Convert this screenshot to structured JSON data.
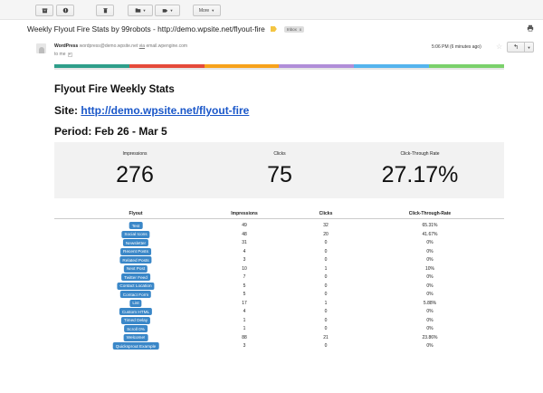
{
  "toolbar": {
    "archive_icon": "archive-icon",
    "spam_icon": "report-spam-icon",
    "delete_icon": "trash-icon",
    "folder_icon": "move-to-folder-icon",
    "label_icon": "labels-icon",
    "more_label": "More"
  },
  "message": {
    "subject": "Weekly Flyout Fire Stats by 99robots - http://demo.wpsite.net/flyout-fire",
    "inbox_chip": "Inbox",
    "inbox_chip_close": "x",
    "sender_name": "WordPress",
    "sender_email": "wordpress@demo.wpsite.net",
    "via_label": "via",
    "via_domain": "email.wpengine.com",
    "to_label": "to me",
    "date": "5:06 PM (6 minutes ago)"
  },
  "color_bar": [
    "#2e9e8a",
    "#e54a3a",
    "#f7a21b",
    "#b08ed8",
    "#55b4ee",
    "#7bd16b"
  ],
  "email": {
    "title": "Flyout Fire Weekly Stats",
    "site_label": "Site:",
    "site_url": "http://demo.wpsite.net/flyout-fire",
    "period": "Period: Feb 26 - Mar 5"
  },
  "summary": {
    "impressions_label": "Impressions",
    "impressions_value": "276",
    "clicks_label": "Clicks",
    "clicks_value": "75",
    "ctr_label": "Click-Through Rate",
    "ctr_value": "27.17%"
  },
  "table": {
    "headers": [
      "Flyout",
      "Impressions",
      "Clicks",
      "Click-Through-Rate"
    ],
    "rows": [
      [
        "Test",
        "49",
        "32",
        "65.31%"
      ],
      [
        "Social Icons",
        "48",
        "20",
        "41.67%"
      ],
      [
        "Newsletter",
        "31",
        "0",
        "0%"
      ],
      [
        "Recent Posts",
        "4",
        "0",
        "0%"
      ],
      [
        "Related Posts",
        "3",
        "0",
        "0%"
      ],
      [
        "Next Post",
        "10",
        "1",
        "10%"
      ],
      [
        "Twitter Feed",
        "7",
        "0",
        "0%"
      ],
      [
        "Contact Location",
        "5",
        "0",
        "0%"
      ],
      [
        "Contact Form",
        "5",
        "0",
        "0%"
      ],
      [
        "List",
        "17",
        "1",
        "5.88%"
      ],
      [
        "Custom HTML",
        "4",
        "0",
        "0%"
      ],
      [
        "Timed Delay",
        "1",
        "0",
        "0%"
      ],
      [
        "Scroll 0%",
        "1",
        "0",
        "0%"
      ],
      [
        "Welcome!",
        "88",
        "21",
        "23.86%"
      ],
      [
        "Quicksprout Example",
        "3",
        "0",
        "0%"
      ]
    ]
  }
}
